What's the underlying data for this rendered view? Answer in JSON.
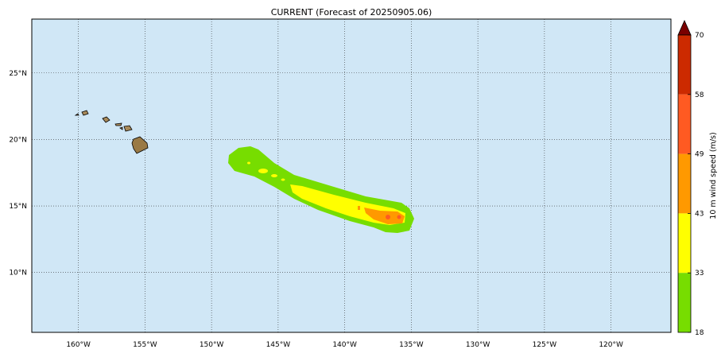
{
  "title": "CURRENT (Forecast of 20250905.06)",
  "map": {
    "lon_range": [
      -163.5,
      -115.5
    ],
    "lat_range": [
      5.5,
      29.05
    ],
    "lon_ticks": [
      {
        "value": -160,
        "label": "160°W"
      },
      {
        "value": -155,
        "label": "155°W"
      },
      {
        "value": -150,
        "label": "150°W"
      },
      {
        "value": -145,
        "label": "145°W"
      },
      {
        "value": -140,
        "label": "140°W"
      },
      {
        "value": -135,
        "label": "135°W"
      },
      {
        "value": -130,
        "label": "130°W"
      },
      {
        "value": -125,
        "label": "125°W"
      },
      {
        "value": -120,
        "label": "120°W"
      }
    ],
    "lat_ticks": [
      {
        "value": 25,
        "label": "25°N"
      },
      {
        "value": 20,
        "label": "20°N"
      },
      {
        "value": 15,
        "label": "15°N"
      },
      {
        "value": 10,
        "label": "10°N"
      }
    ],
    "ocean_color": "#d0e7f6"
  },
  "colorbar": {
    "label": "10 m wind speed (m/s)",
    "ticks": [
      "70",
      "58",
      "49",
      "43",
      "33",
      "18"
    ],
    "bins": [
      {
        "from": 58,
        "to": 70,
        "color": "#cc2a00"
      },
      {
        "from": 49,
        "to": 58,
        "color": "#ff5a22"
      },
      {
        "from": 43,
        "to": 49,
        "color": "#ff9900"
      },
      {
        "from": 33,
        "to": 43,
        "color": "#ffff00"
      },
      {
        "from": 18,
        "to": 33,
        "color": "#77dd00"
      }
    ],
    "extend_color": "#7a0000"
  }
}
